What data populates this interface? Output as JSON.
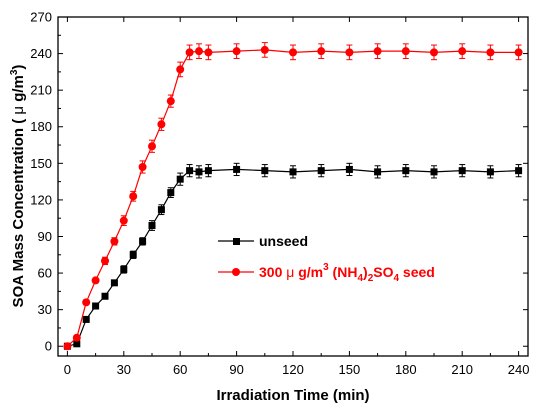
{
  "chart_data": {
    "type": "line",
    "xlabel": "Irradiation Time (min)",
    "ylabel": {
      "main": "SOA Mass Concentration ( ",
      "mu": "μ",
      "unit": " g/m",
      "sup": "3",
      "close": ")"
    },
    "xlim": [
      -5,
      245
    ],
    "ylim": [
      -8,
      270
    ],
    "xticks": [
      0,
      30,
      60,
      90,
      120,
      150,
      180,
      210,
      240
    ],
    "yticks": [
      0,
      30,
      60,
      90,
      120,
      150,
      180,
      210,
      240,
      270
    ],
    "grid": false,
    "legend_position": "middle-right",
    "series": [
      {
        "name": "unseed",
        "color": "#000000",
        "marker": "square",
        "legend": {
          "text": "unseed"
        },
        "x": [
          0,
          5,
          10,
          15,
          20,
          25,
          30,
          35,
          40,
          45,
          50,
          55,
          60,
          65,
          70,
          75,
          90,
          105,
          120,
          135,
          150,
          165,
          180,
          195,
          210,
          225,
          240
        ],
        "y": [
          0,
          2,
          22,
          33,
          41,
          52,
          63,
          75,
          86,
          99,
          112,
          126,
          137,
          144,
          143,
          144,
          145,
          144,
          143,
          144,
          145,
          143,
          144,
          143,
          144,
          143,
          144
        ],
        "err": [
          0,
          1,
          2,
          2,
          2,
          2,
          3,
          3,
          3,
          4,
          4,
          4,
          5,
          5,
          5,
          5,
          5,
          5,
          5,
          5,
          5,
          5,
          5,
          5,
          5,
          5,
          5
        ]
      },
      {
        "name": "300 μ g/m3 (NH4)2SO4 seed",
        "color": "#ff0000",
        "marker": "circle",
        "legend": {
          "p1": "300 ",
          "mu": "μ",
          "p2": " g/m",
          "sup3": "3",
          "p3": " (NH",
          "sub4": "4",
          "p4": ")",
          "sub2": "2",
          "p5": "SO",
          "sub4b": "4",
          "p6": " seed"
        },
        "x": [
          0,
          5,
          10,
          15,
          20,
          25,
          30,
          35,
          40,
          45,
          50,
          55,
          60,
          65,
          70,
          75,
          90,
          105,
          120,
          135,
          150,
          165,
          180,
          195,
          210,
          225,
          240
        ],
        "y": [
          0,
          7,
          36,
          54,
          70,
          86,
          103,
          123,
          147,
          164,
          182,
          201,
          227,
          241,
          242,
          241,
          242,
          243,
          241,
          242,
          241,
          242,
          242,
          241,
          242,
          241,
          241
        ],
        "err": [
          0,
          1,
          2,
          2,
          3,
          3,
          4,
          4,
          5,
          5,
          5,
          5,
          6,
          6,
          6,
          6,
          6,
          6,
          6,
          6,
          6,
          6,
          6,
          6,
          6,
          6,
          6
        ]
      }
    ]
  }
}
